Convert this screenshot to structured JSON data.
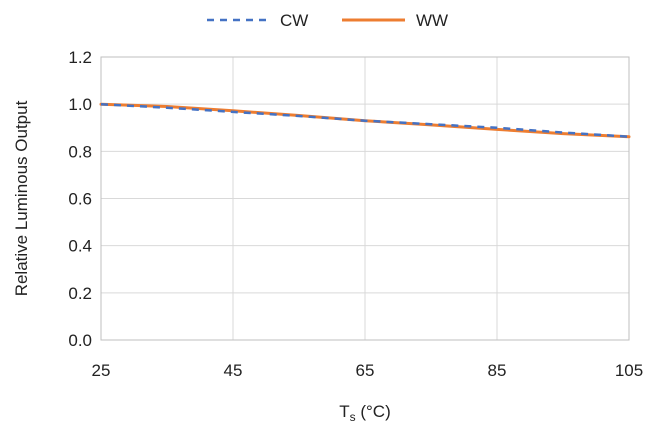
{
  "chart_data": {
    "type": "line",
    "title": "",
    "xlabel": "T",
    "xlabel_sub": "s",
    "xlabel_suffix": " (°C)",
    "ylabel": "Relative Luminous Output",
    "xlim": [
      25,
      105
    ],
    "ylim": [
      0.0,
      1.2
    ],
    "x_ticks": [
      25,
      45,
      65,
      85,
      105
    ],
    "y_ticks": [
      0.0,
      0.2,
      0.4,
      0.6,
      0.8,
      1.0,
      1.2
    ],
    "y_tick_labels": [
      "0.0",
      "0.2",
      "0.4",
      "0.6",
      "0.8",
      "1.0",
      "1.2"
    ],
    "grid": true,
    "legend_position": "top-center",
    "series": [
      {
        "name": "CW",
        "color": "#4472C4",
        "style": "dashed",
        "x": [
          25,
          35,
          45,
          55,
          65,
          75,
          85,
          95,
          105
        ],
        "y": [
          1.0,
          0.985,
          0.967,
          0.95,
          0.93,
          0.915,
          0.9,
          0.88,
          0.862
        ]
      },
      {
        "name": "WW",
        "color": "#ED7D31",
        "style": "solid",
        "x": [
          25,
          35,
          45,
          55,
          65,
          75,
          85,
          95,
          105
        ],
        "y": [
          1.0,
          0.99,
          0.972,
          0.952,
          0.93,
          0.912,
          0.893,
          0.875,
          0.862
        ]
      }
    ]
  }
}
